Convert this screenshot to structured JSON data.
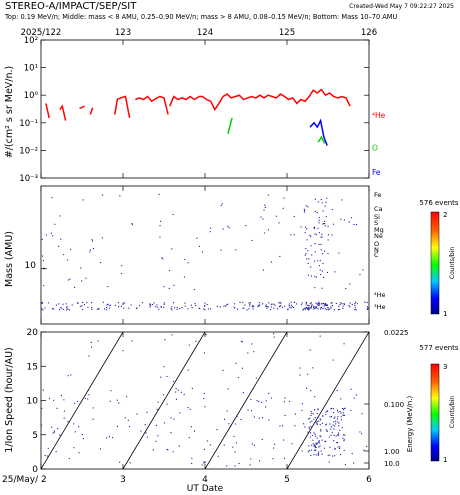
{
  "header": {
    "title": "STEREO-A/IMPACT/SEP/SIT",
    "created": "Created-Wed May  7 09:22:27 2025",
    "subtitle": "Top: 0.19 MeV/n; Middle: mass < 8 AMU, 0.25–0.90 MeV/n; mass > 8 AMU, 0.08–0.15 MeV/n; Bottom: Mass 10–70 AMU"
  },
  "panels": {
    "top": {
      "ylabel": "#/(cm² s sr MeV/n.)",
      "xticks_top": [
        "2025/122",
        "123",
        "124",
        "125",
        "126"
      ],
      "yticks": [
        "10⁻³",
        "10⁻²",
        "10⁻¹",
        "10⁰",
        "10¹",
        "10²"
      ],
      "species": [
        {
          "label": "⁴He",
          "color": "#ff0000"
        },
        {
          "label": "O",
          "color": "#00cc00"
        },
        {
          "label": "Fe",
          "color": "#0000ff"
        }
      ]
    },
    "middle": {
      "ylabel": "Mass (AMU)",
      "ytick": "10",
      "species": [
        "Fe",
        "Ca",
        "Si",
        "S",
        "Mg",
        "Ne",
        "O",
        "N",
        "C",
        "⁴He",
        "³He"
      ],
      "colorbar": {
        "events": "576 events",
        "label": "Counts/bin",
        "max": "2",
        "min": "1"
      }
    },
    "bottom": {
      "ylabel": "1/Ion Speed (hour/AU)",
      "xlabel": "UT Date",
      "xticks": [
        "25/May/ 2",
        "3",
        "4",
        "5",
        "6"
      ],
      "yticks": [
        "0",
        "5",
        "10",
        "15",
        "20"
      ],
      "energy_label": "Energy (MeV/n.)",
      "energy_ticks": [
        "0.0225",
        "0.100",
        "1.00",
        "10.0"
      ],
      "colorbar": {
        "events": "577 events",
        "label": "Counts/bin",
        "max": "3",
        "min": "1"
      }
    }
  },
  "chart_data": [
    {
      "type": "line",
      "title": "Top: 0.19 MeV/n",
      "xlabel": "",
      "ylabel": "#/(cm² s sr MeV/n.)",
      "xlim": [
        2.0,
        6.0
      ],
      "ylim": [
        0.001,
        100
      ],
      "yscale": "log",
      "series": [
        {
          "name": "⁴He",
          "color": "#ff0000",
          "segments": [
            [
              [
                2.06,
                0.5
              ],
              [
                2.1,
                0.15
              ]
            ],
            [
              [
                2.23,
                0.3
              ],
              [
                2.26,
                0.4
              ],
              [
                2.3,
                0.12
              ]
            ],
            [
              [
                2.47,
                0.33
              ],
              [
                2.53,
                0.4
              ]
            ],
            [
              [
                2.6,
                0.2
              ],
              [
                2.63,
                0.35
              ]
            ],
            [
              [
                2.9,
                0.2
              ],
              [
                2.93,
                0.7
              ],
              [
                2.97,
                0.8
              ],
              [
                3.03,
                0.9
              ],
              [
                3.08,
                0.15
              ]
            ],
            [
              [
                3.15,
                0.7
              ],
              [
                3.2,
                0.8
              ],
              [
                3.25,
                0.7
              ],
              [
                3.3,
                0.9
              ],
              [
                3.35,
                0.6
              ],
              [
                3.4,
                0.75
              ],
              [
                3.45,
                0.9
              ],
              [
                3.5,
                0.8
              ],
              [
                3.55,
                0.2
              ]
            ],
            [
              [
                3.57,
                0.4
              ],
              [
                3.62,
                0.9
              ],
              [
                3.67,
                0.7
              ],
              [
                3.72,
                0.8
              ],
              [
                3.77,
                0.7
              ],
              [
                3.82,
                0.9
              ],
              [
                3.87,
                0.7
              ],
              [
                3.93,
                0.9
              ],
              [
                3.97,
                0.9
              ],
              [
                4.02,
                0.7
              ],
              [
                4.07,
                0.6
              ],
              [
                4.12,
                0.3
              ],
              [
                4.17,
                0.5
              ],
              [
                4.22,
                0.9
              ],
              [
                4.27,
                1.1
              ],
              [
                4.32,
                0.8
              ],
              [
                4.37,
                0.9
              ],
              [
                4.42,
                1.0
              ],
              [
                4.47,
                0.7
              ],
              [
                4.52,
                0.8
              ],
              [
                4.57,
                0.9
              ],
              [
                4.62,
                0.8
              ],
              [
                4.67,
                1.0
              ],
              [
                4.72,
                0.8
              ],
              [
                4.77,
                1.0
              ],
              [
                4.82,
                0.9
              ],
              [
                4.87,
                0.8
              ],
              [
                4.92,
                1.1
              ],
              [
                4.97,
                0.9
              ],
              [
                5.02,
                0.7
              ],
              [
                5.07,
                0.8
              ],
              [
                5.12,
                0.5
              ],
              [
                5.17,
                0.7
              ],
              [
                5.22,
                0.6
              ],
              [
                5.27,
                0.9
              ],
              [
                5.32,
                1.5
              ],
              [
                5.37,
                1.2
              ],
              [
                5.42,
                1.6
              ],
              [
                5.47,
                1.0
              ],
              [
                5.52,
                1.2
              ],
              [
                5.57,
                0.9
              ],
              [
                5.62,
                0.8
              ],
              [
                5.67,
                0.9
              ],
              [
                5.72,
                0.8
              ],
              [
                5.77,
                0.4
              ]
            ]
          ]
        },
        {
          "name": "O",
          "color": "#00cc00",
          "segments": [
            [
              [
                4.28,
                0.04
              ],
              [
                4.31,
                0.09
              ],
              [
                4.33,
                0.15
              ]
            ],
            [
              [
                5.38,
                0.02
              ],
              [
                5.42,
                0.03
              ],
              [
                5.46,
                0.018
              ]
            ]
          ]
        },
        {
          "name": "Fe",
          "color": "#0000ff",
          "segments": [
            [
              [
                5.28,
                0.07
              ],
              [
                5.33,
                0.1
              ],
              [
                5.37,
                0.07
              ],
              [
                5.41,
                0.12
              ],
              [
                5.45,
                0.03
              ],
              [
                5.49,
                0.015
              ]
            ]
          ]
        }
      ]
    },
    {
      "type": "scatter",
      "title": "Middle: mass < 8 AMU, 0.25–0.90 MeV/n; mass > 8 AMU, 0.08–0.15 MeV/n",
      "xlabel": "",
      "ylabel": "Mass (AMU)",
      "xlim": [
        2.0,
        6.0
      ],
      "ylim": [
        2.5,
        80
      ],
      "yscale": "log",
      "clusters": [
        {
          "x": [
            2.0,
            6.0
          ],
          "y": [
            3.6,
            4.4
          ],
          "count": 230
        },
        {
          "x": [
            5.2,
            5.5
          ],
          "y": [
            3.6,
            4.4
          ],
          "count": 45
        },
        {
          "x": [
            5.2,
            5.5
          ],
          "y": [
            8,
            60
          ],
          "count": 70
        },
        {
          "x": [
            2.0,
            6.0
          ],
          "y": [
            6,
            70
          ],
          "count": 110
        }
      ],
      "colorbar": {
        "label": "Counts/bin",
        "range": [
          1,
          2
        ],
        "events": 576
      }
    },
    {
      "type": "scatter",
      "title": "Bottom: Mass 10–70 AMU",
      "xlabel": "UT Date",
      "ylabel": "1/Ion Speed (hour/AU)",
      "xlim": [
        2.0,
        6.0
      ],
      "ylim": [
        0,
        20
      ],
      "secondary_axis": {
        "label": "Energy (MeV/n.)",
        "ticks": [
          0.0225,
          0.1,
          1.0,
          10.0
        ]
      },
      "velocity_lines": [
        [
          2.0,
          3.0
        ],
        [
          3.0,
          4.0
        ],
        [
          4.0,
          5.0
        ],
        [
          5.0,
          6.0
        ]
      ],
      "clusters": [
        {
          "x": [
            2.0,
            6.0
          ],
          "y": [
            0.5,
            12
          ],
          "count": 200
        },
        {
          "x": [
            5.25,
            5.7
          ],
          "y": [
            2,
            9
          ],
          "count": 130
        },
        {
          "x": [
            2.0,
            6.0
          ],
          "y": [
            12,
            20
          ],
          "count": 40
        }
      ],
      "colorbar": {
        "label": "Counts/bin",
        "range": [
          1,
          3
        ],
        "events": 577
      }
    }
  ]
}
